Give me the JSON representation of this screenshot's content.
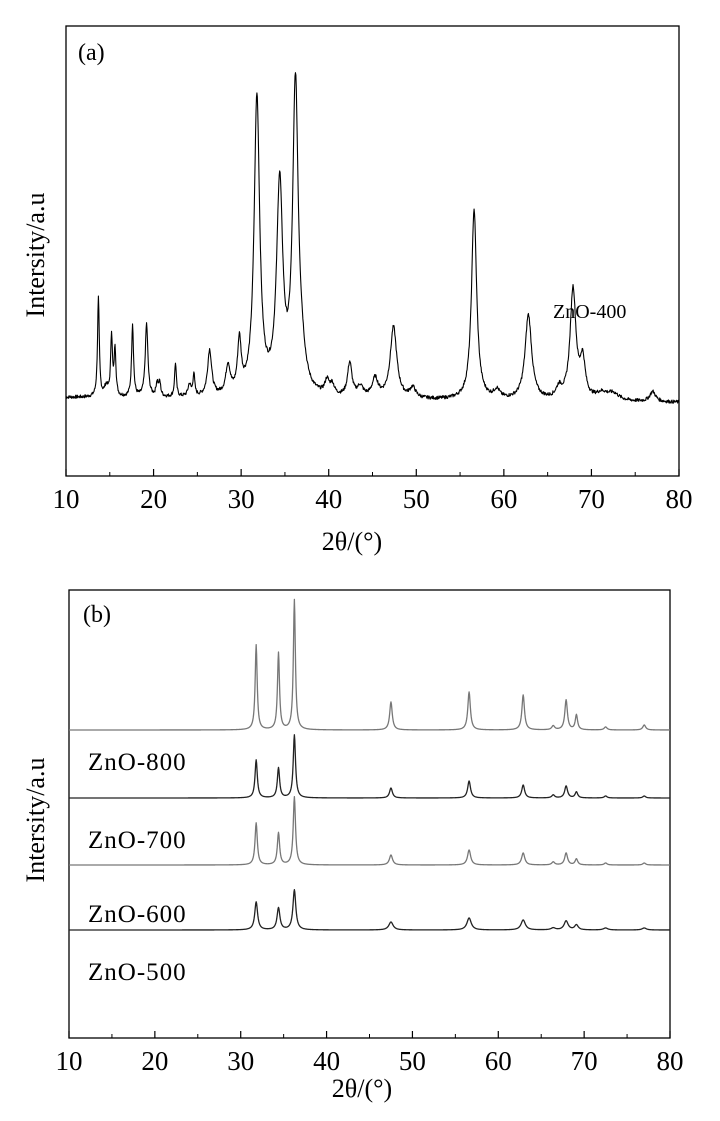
{
  "chart_data": [
    {
      "type": "line",
      "panel_label": "(a)",
      "xlabel": "2θ/(°)",
      "ylabel": "Intersity/a.u",
      "xlim": [
        10,
        80
      ],
      "x_ticks": [
        "10",
        "20",
        "30",
        "40",
        "50",
        "60",
        "70",
        "80"
      ],
      "y_ticks": [],
      "grid": false,
      "series": [
        {
          "name": "ZnO-400",
          "color": "#000000",
          "baseline": 5,
          "slope": -3,
          "noise": 1,
          "peaks": [
            [
              13.7,
              58,
              0.12
            ],
            [
              14.6,
              6,
              0.25
            ],
            [
              15.2,
              36,
              0.12
            ],
            [
              15.6,
              28,
              0.12
            ],
            [
              17.6,
              43,
              0.13
            ],
            [
              19.2,
              43,
              0.18
            ],
            [
              20.4,
              8,
              0.14
            ],
            [
              20.7,
              8,
              0.14
            ],
            [
              22.5,
              20,
              0.12
            ],
            [
              24.1,
              7,
              0.2
            ],
            [
              24.6,
              13,
              0.12
            ],
            [
              26.4,
              27,
              0.28
            ],
            [
              28.5,
              17,
              0.3
            ],
            [
              29.8,
              30,
              0.25
            ],
            [
              31.8,
              175,
              0.38
            ],
            [
              34.4,
              122,
              0.42
            ],
            [
              36.2,
              180,
              0.38
            ],
            [
              36.9,
              15,
              0.5
            ],
            [
              39.8,
              8,
              0.3
            ],
            [
              40.4,
              6,
              0.3
            ],
            [
              42.4,
              20,
              0.3
            ],
            [
              43.6,
              6,
              0.4
            ],
            [
              45.3,
              11,
              0.4
            ],
            [
              47.4,
              42,
              0.45
            ],
            [
              49.6,
              6,
              0.4
            ],
            [
              56.6,
              112,
              0.35
            ],
            [
              59.2,
              5,
              0.4
            ],
            [
              62.8,
              50,
              0.45
            ],
            [
              66.3,
              6,
              0.4
            ],
            [
              67.9,
              65,
              0.4
            ],
            [
              69.0,
              22,
              0.35
            ],
            [
              71.2,
              4,
              0.8
            ],
            [
              72.5,
              4,
              0.8
            ],
            [
              77.0,
              6,
              0.4
            ]
          ]
        }
      ],
      "annotations": [
        "ZnO-400"
      ]
    },
    {
      "type": "line",
      "panel_label": "(b)",
      "xlabel": "2θ/(°)",
      "ylabel": "Intersity/a.u",
      "xlim": [
        10,
        80
      ],
      "x_ticks": [
        "10",
        "20",
        "30",
        "40",
        "50",
        "60",
        "70",
        "80"
      ],
      "y_ticks": [],
      "grid": false,
      "series": [
        {
          "name": "ZnO-800",
          "color": "#777777",
          "baseline": 228,
          "peaks": [
            [
              31.8,
              85,
              0.14
            ],
            [
              34.4,
              77,
              0.14
            ],
            [
              36.25,
              130,
              0.14
            ],
            [
              47.5,
              28,
              0.18
            ],
            [
              56.6,
              38,
              0.18
            ],
            [
              62.9,
              35,
              0.18
            ],
            [
              66.4,
              4,
              0.2
            ],
            [
              67.9,
              30,
              0.18
            ],
            [
              69.1,
              15,
              0.16
            ],
            [
              72.5,
              3,
              0.2
            ],
            [
              77.0,
              5,
              0.2
            ]
          ]
        },
        {
          "name": "ZnO-700",
          "color": "#222222",
          "baseline": 160,
          "peaks": [
            [
              31.8,
              38,
              0.16
            ],
            [
              34.4,
              30,
              0.16
            ],
            [
              36.25,
              63,
              0.16
            ],
            [
              47.5,
              10,
              0.2
            ],
            [
              56.6,
              17,
              0.2
            ],
            [
              62.9,
              13,
              0.2
            ],
            [
              66.4,
              3,
              0.2
            ],
            [
              67.9,
              12,
              0.2
            ],
            [
              69.1,
              6,
              0.18
            ],
            [
              72.5,
              2,
              0.2
            ],
            [
              77.0,
              2,
              0.2
            ]
          ]
        },
        {
          "name": "ZnO-600",
          "color": "#777777",
          "baseline": 93,
          "peaks": [
            [
              31.8,
              42,
              0.16
            ],
            [
              34.4,
              32,
              0.16
            ],
            [
              36.25,
              68,
              0.16
            ],
            [
              47.5,
              10,
              0.22
            ],
            [
              56.6,
              15,
              0.22
            ],
            [
              62.9,
              12,
              0.22
            ],
            [
              66.4,
              3,
              0.2
            ],
            [
              67.9,
              12,
              0.2
            ],
            [
              69.1,
              6,
              0.18
            ],
            [
              72.5,
              2,
              0.2
            ],
            [
              77.0,
              2,
              0.2
            ]
          ]
        },
        {
          "name": "ZnO-500",
          "color": "#222222",
          "baseline": 28,
          "peaks": [
            [
              31.8,
              28,
              0.2
            ],
            [
              34.4,
              22,
              0.2
            ],
            [
              36.25,
              40,
              0.2
            ],
            [
              47.5,
              8,
              0.3
            ],
            [
              56.6,
              12,
              0.3
            ],
            [
              62.9,
              10,
              0.3
            ],
            [
              66.4,
              2,
              0.3
            ],
            [
              67.9,
              9,
              0.28
            ],
            [
              69.1,
              5,
              0.25
            ],
            [
              72.5,
              2,
              0.3
            ],
            [
              77.0,
              2,
              0.3
            ]
          ]
        }
      ],
      "annotations": [
        "ZnO-800",
        "ZnO-700",
        "ZnO-600",
        "ZnO-500"
      ]
    }
  ]
}
